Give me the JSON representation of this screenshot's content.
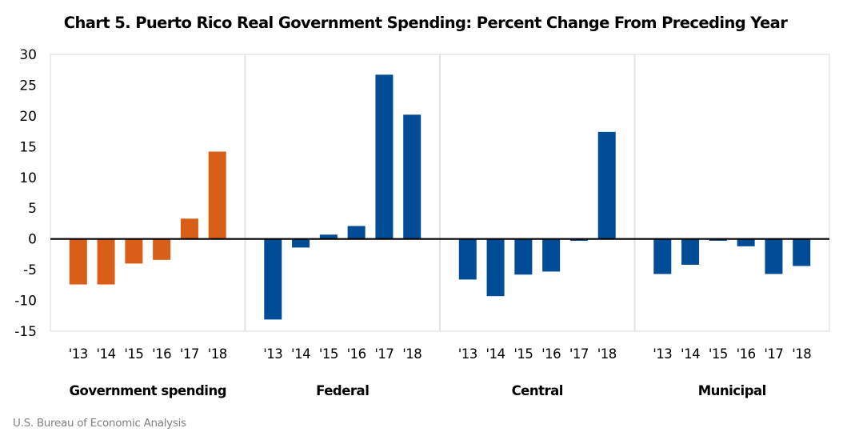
{
  "chart_data": {
    "type": "bar",
    "title": "Chart 5. Puerto Rico Real Government Spending: Percent Change From Preceding Year",
    "xlabel": "",
    "ylabel": "",
    "ylim": [
      -15,
      30
    ],
    "yticks": [
      30,
      25,
      20,
      15,
      10,
      5,
      0,
      -5,
      -10,
      -15
    ],
    "grid": false,
    "categories": [
      "'13",
      "'14",
      "'15",
      "'16",
      "'17",
      "'18"
    ],
    "series": [
      {
        "name": "Government spending",
        "color": "#D95F19",
        "values": [
          -7.4,
          -7.4,
          -4.0,
          -3.4,
          3.3,
          14.2
        ]
      },
      {
        "name": "Federal",
        "color": "#004C97",
        "values": [
          -13.1,
          -1.4,
          0.7,
          2.1,
          26.7,
          20.2
        ]
      },
      {
        "name": "Central",
        "color": "#004C97",
        "values": [
          -6.6,
          -9.3,
          -5.8,
          -5.3,
          -0.3,
          17.4
        ]
      },
      {
        "name": "Municipal",
        "color": "#004C97",
        "values": [
          -5.7,
          -4.2,
          -0.3,
          -1.2,
          -5.7,
          -4.4
        ]
      }
    ],
    "source": "U.S. Bureau of Economic Analysis"
  }
}
